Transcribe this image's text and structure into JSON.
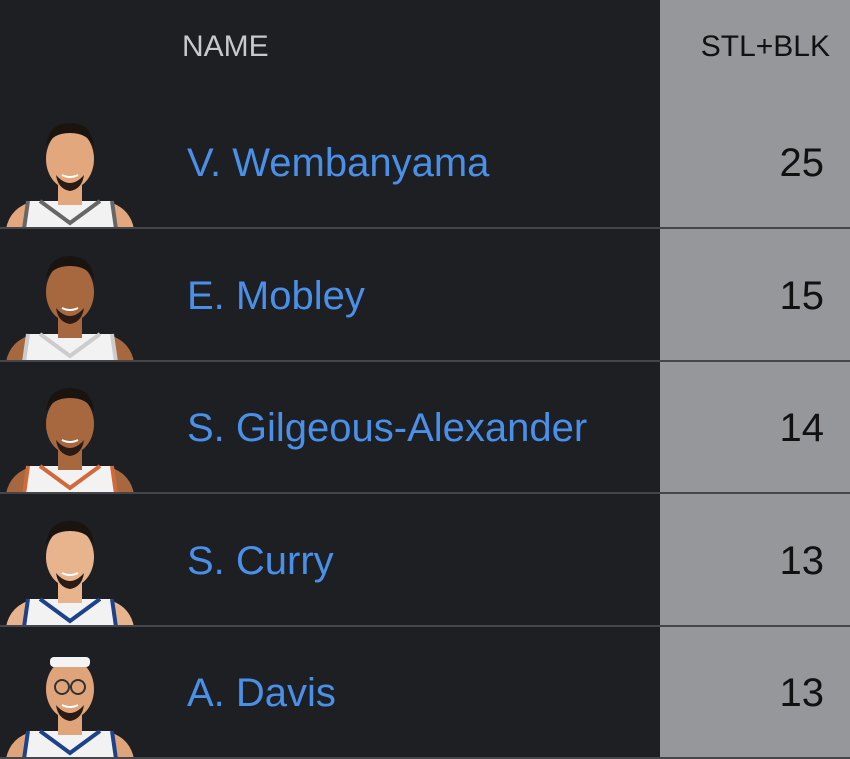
{
  "header": {
    "name_label": "NAME",
    "stat_label": "STL+BLK"
  },
  "colors": {
    "background": "#1e1f23",
    "stat_column": "#96979b",
    "link": "#4a8fe8"
  },
  "players": [
    {
      "name": "V. Wembanyama",
      "value": "25",
      "skin": "#e2a77c",
      "jersey": "#f2f2f2",
      "trim": "#666666",
      "headband": false
    },
    {
      "name": "E. Mobley",
      "value": "15",
      "skin": "#a8683f",
      "jersey": "#f2f2f2",
      "trim": "#cccccc",
      "headband": false
    },
    {
      "name": "S. Gilgeous-Alexander",
      "value": "14",
      "skin": "#a8683f",
      "jersey": "#f2f2f2",
      "trim": "#d06a3a",
      "headband": false
    },
    {
      "name": "S. Curry",
      "value": "13",
      "skin": "#e8b48e",
      "jersey": "#f2f2f2",
      "trim": "#1d428a",
      "headband": false
    },
    {
      "name": "A. Davis",
      "value": "13",
      "skin": "#e0a47a",
      "jersey": "#f2f2f2",
      "trim": "#1d428a",
      "headband": true
    }
  ]
}
